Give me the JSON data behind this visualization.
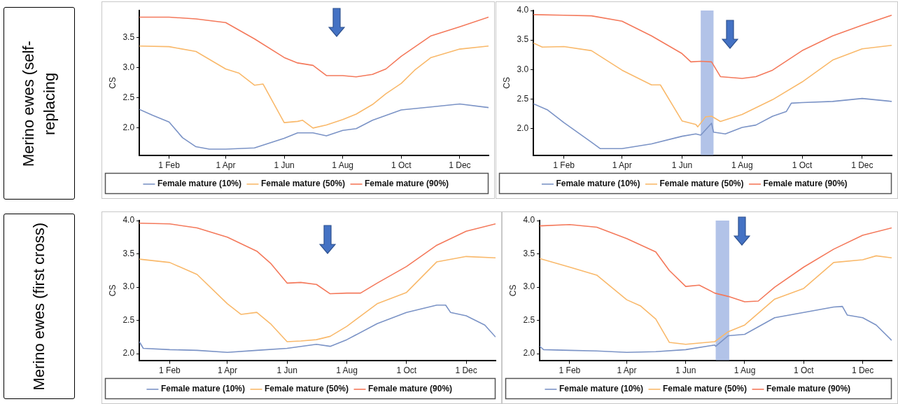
{
  "chart_data": [
    {
      "type": "line",
      "title": "Merino ewes (self-replacing",
      "ylabel": "CS",
      "legend": "bottom",
      "marker": "none",
      "grid": false,
      "xlim": [
        "--01-01",
        "--12-31"
      ],
      "xticks": [
        {
          "value": "--02-01",
          "label": "1 Feb"
        },
        {
          "value": "--04-01",
          "label": "1 Apr"
        },
        {
          "value": "--06-01",
          "label": "1 Jun"
        },
        {
          "value": "--08-01",
          "label": "1 Aug"
        },
        {
          "value": "--10-01",
          "label": "1 Oct"
        },
        {
          "value": "--12-01",
          "label": "1 Dec"
        }
      ],
      "ylim": [
        1.55,
        3.95
      ],
      "yticks": [
        {
          "value": 2,
          "label": "2.0"
        },
        {
          "value": 2.5,
          "label": "2.5"
        },
        {
          "value": 3,
          "label": "3.0"
        },
        {
          "value": 3.5,
          "label": "3.5"
        }
      ],
      "series": [
        {
          "name": "Female mature (10%)",
          "color": "#7b93c6",
          "x": [
            "--01-01",
            "--01-15",
            "--02-01",
            "--02-15",
            "--03-01",
            "--03-15",
            "--04-01",
            "--05-01",
            "--06-01",
            "--06-15",
            "--07-01",
            "--07-15",
            "--08-01",
            "--08-15",
            "--09-01",
            "--10-01",
            "--11-01",
            "--12-01",
            "--12-31"
          ],
          "values": [
            2.31,
            2.21,
            2.1,
            1.84,
            1.69,
            1.65,
            1.65,
            1.67,
            1.83,
            1.92,
            1.92,
            1.87,
            1.96,
            1.99,
            2.13,
            2.3,
            2.35,
            2.4,
            2.34
          ]
        },
        {
          "name": "Female mature (50%)",
          "color": "#f9b96b",
          "x": [
            "--01-01",
            "--02-01",
            "--03-01",
            "--04-01",
            "--04-15",
            "--05-01",
            "--05-10",
            "--06-01",
            "--06-15",
            "--06-20",
            "--07-01",
            "--07-15",
            "--08-01",
            "--08-15",
            "--09-01",
            "--09-15",
            "--10-01",
            "--10-15",
            "--11-01",
            "--12-01",
            "--12-31"
          ],
          "values": [
            3.36,
            3.35,
            3.27,
            2.98,
            2.91,
            2.71,
            2.73,
            2.09,
            2.11,
            2.13,
            2.0,
            2.05,
            2.14,
            2.23,
            2.39,
            2.57,
            2.74,
            2.96,
            3.17,
            3.31,
            3.36
          ]
        },
        {
          "name": "Female mature (90%)",
          "color": "#f4795b",
          "x": [
            "--01-01",
            "--02-01",
            "--03-01",
            "--04-01",
            "--05-01",
            "--06-01",
            "--06-15",
            "--07-01",
            "--07-15",
            "--08-01",
            "--08-15",
            "--09-01",
            "--09-15",
            "--10-01",
            "--11-01",
            "--12-01",
            "--12-31"
          ],
          "values": [
            3.84,
            3.84,
            3.81,
            3.75,
            3.48,
            3.17,
            3.08,
            3.04,
            2.87,
            2.87,
            2.85,
            2.89,
            2.98,
            3.19,
            3.53,
            3.68,
            3.84
          ]
        }
      ]
    },
    {
      "type": "line",
      "ylabel": "CS",
      "legend": "bottom",
      "marker": "none",
      "grid": false,
      "xlim": [
        "--01-01",
        "--12-31"
      ],
      "xticks": [
        {
          "value": "--02-01",
          "label": "1 Feb"
        },
        {
          "value": "--04-01",
          "label": "1 Apr"
        },
        {
          "value": "--06-01",
          "label": "1 Jun"
        },
        {
          "value": "--08-01",
          "label": "1 Aug"
        },
        {
          "value": "--10-01",
          "label": "1 Oct"
        },
        {
          "value": "--12-01",
          "label": "1 Dec"
        }
      ],
      "ylim": [
        1.55,
        4.0
      ],
      "yticks": [
        {
          "value": 2,
          "label": "2.0"
        },
        {
          "value": 2.5,
          "label": "2.5"
        },
        {
          "value": 3,
          "label": "3.0"
        },
        {
          "value": 3.5,
          "label": "3.5"
        },
        {
          "value": 4,
          "label": "4.0"
        }
      ],
      "bands": [
        {
          "axis": "x",
          "from": "--06-20",
          "to": "--07-03",
          "color": "#aabde6"
        }
      ],
      "series": [
        {
          "name": "Female mature (10%)",
          "color": "#7b93c6",
          "x": [
            "--01-01",
            "--01-15",
            "--02-01",
            "--03-01",
            "--03-10",
            "--04-01",
            "--05-01",
            "--06-01",
            "--06-15",
            "--06-20",
            "--07-01",
            "--07-03",
            "--07-15",
            "--08-01",
            "--08-15",
            "--09-01",
            "--09-15",
            "--09-20",
            "--10-01",
            "--11-01",
            "--12-01",
            "--12-31"
          ],
          "values": [
            2.42,
            2.32,
            2.1,
            1.77,
            1.66,
            1.66,
            1.74,
            1.87,
            1.91,
            1.89,
            2.09,
            1.94,
            1.91,
            2.02,
            2.06,
            2.21,
            2.29,
            2.43,
            2.44,
            2.46,
            2.51,
            2.46
          ]
        },
        {
          "name": "Female mature (50%)",
          "color": "#f9b96b",
          "x": [
            "--01-01",
            "--01-10",
            "--02-01",
            "--03-01",
            "--04-01",
            "--05-01",
            "--05-10",
            "--06-01",
            "--06-15",
            "--06-17",
            "--06-25",
            "--07-01",
            "--07-10",
            "--08-01",
            "--09-01",
            "--10-01",
            "--11-01",
            "--12-01",
            "--12-31"
          ],
          "values": [
            3.45,
            3.38,
            3.39,
            3.32,
            2.99,
            2.74,
            2.74,
            2.13,
            2.07,
            2.03,
            2.2,
            2.21,
            2.12,
            2.24,
            2.49,
            2.79,
            3.16,
            3.35,
            3.41
          ]
        },
        {
          "name": "Female mature (90%)",
          "color": "#f4795b",
          "x": [
            "--01-01",
            "--02-01",
            "--03-01",
            "--04-01",
            "--05-01",
            "--06-01",
            "--06-10",
            "--06-20",
            "--07-01",
            "--07-10",
            "--08-01",
            "--08-15",
            "--09-01",
            "--10-01",
            "--11-01",
            "--12-01",
            "--12-31"
          ],
          "values": [
            3.93,
            3.92,
            3.91,
            3.82,
            3.57,
            3.27,
            3.13,
            3.14,
            3.13,
            2.88,
            2.85,
            2.88,
            2.99,
            3.32,
            3.57,
            3.75,
            3.92
          ]
        }
      ]
    },
    {
      "type": "line",
      "title": "Merino ewes (first cross)",
      "ylabel": "CS",
      "legend": "bottom",
      "marker": "none",
      "grid": false,
      "xlim": [
        "--01-01",
        "--12-31"
      ],
      "xticks": [
        {
          "value": "--02-01",
          "label": "1 Feb"
        },
        {
          "value": "--04-01",
          "label": "1 Apr"
        },
        {
          "value": "--06-01",
          "label": "1 Jun"
        },
        {
          "value": "--08-01",
          "label": "1 Aug"
        },
        {
          "value": "--10-01",
          "label": "1 Oct"
        },
        {
          "value": "--12-01",
          "label": "1 Dec"
        }
      ],
      "ylim": [
        1.9,
        4.0
      ],
      "yticks": [
        {
          "value": 2,
          "label": "2.0"
        },
        {
          "value": 2.5,
          "label": "2.5"
        },
        {
          "value": 3,
          "label": "3.0"
        },
        {
          "value": 3.5,
          "label": "3.5"
        },
        {
          "value": 4,
          "label": "4.0"
        }
      ],
      "series": [
        {
          "name": "Female mature (10%)",
          "color": "#7b93c6",
          "x": [
            "--01-01",
            "--01-05",
            "--02-01",
            "--03-01",
            "--04-01",
            "--05-01",
            "--06-01",
            "--07-01",
            "--07-15",
            "--08-01",
            "--09-01",
            "--10-01",
            "--11-01",
            "--11-10",
            "--11-15",
            "--12-01",
            "--12-20",
            "--12-31"
          ],
          "values": [
            2.18,
            2.08,
            2.06,
            2.05,
            2.02,
            2.05,
            2.08,
            2.14,
            2.11,
            2.21,
            2.45,
            2.62,
            2.73,
            2.73,
            2.62,
            2.57,
            2.43,
            2.25
          ]
        },
        {
          "name": "Female mature (50%)",
          "color": "#f9b96b",
          "x": [
            "--01-01",
            "--02-01",
            "--03-01",
            "--04-01",
            "--04-15",
            "--05-01",
            "--05-15",
            "--06-01",
            "--06-15",
            "--07-01",
            "--07-15",
            "--08-01",
            "--09-01",
            "--10-01",
            "--11-01",
            "--12-01",
            "--12-31"
          ],
          "values": [
            3.42,
            3.37,
            3.19,
            2.75,
            2.59,
            2.62,
            2.45,
            2.18,
            2.19,
            2.21,
            2.26,
            2.41,
            2.75,
            2.92,
            3.38,
            3.46,
            3.44
          ]
        },
        {
          "name": "Female mature (90%)",
          "color": "#f4795b",
          "x": [
            "--01-01",
            "--02-01",
            "--03-01",
            "--04-01",
            "--05-01",
            "--05-15",
            "--06-01",
            "--06-15",
            "--07-01",
            "--07-15",
            "--08-01",
            "--08-15",
            "--09-01",
            "--10-01",
            "--11-01",
            "--12-01",
            "--12-31"
          ],
          "values": [
            3.96,
            3.95,
            3.89,
            3.75,
            3.54,
            3.36,
            3.06,
            3.07,
            3.04,
            2.9,
            2.91,
            2.91,
            3.06,
            3.31,
            3.63,
            3.84,
            3.95
          ]
        }
      ]
    },
    {
      "type": "line",
      "ylabel": "CS",
      "legend": "bottom",
      "marker": "none",
      "grid": false,
      "xlim": [
        "--01-01",
        "--12-31"
      ],
      "xticks": [
        {
          "value": "--02-01",
          "label": "1 Feb"
        },
        {
          "value": "--04-01",
          "label": "1 Apr"
        },
        {
          "value": "--06-01",
          "label": "1 Jun"
        },
        {
          "value": "--08-01",
          "label": "1 Aug"
        },
        {
          "value": "--10-01",
          "label": "1 Oct"
        },
        {
          "value": "--12-01",
          "label": "1 Dec"
        }
      ],
      "ylim": [
        1.9,
        4.0
      ],
      "yticks": [
        {
          "value": 2,
          "label": "2.0"
        },
        {
          "value": 2.5,
          "label": "2.5"
        },
        {
          "value": 3,
          "label": "3.0"
        },
        {
          "value": 3.5,
          "label": "3.5"
        },
        {
          "value": 4,
          "label": "4.0"
        }
      ],
      "bands": [
        {
          "axis": "x",
          "from": "--07-02",
          "to": "--07-16",
          "color": "#aabde6"
        }
      ],
      "series": [
        {
          "name": "Female mature (10%)",
          "color": "#7b93c6",
          "x": [
            "--01-01",
            "--01-05",
            "--02-01",
            "--03-01",
            "--04-01",
            "--05-01",
            "--06-01",
            "--07-01",
            "--07-02",
            "--07-15",
            "--08-01",
            "--09-01",
            "--10-01",
            "--11-01",
            "--11-10",
            "--11-15",
            "--12-01",
            "--12-15",
            "--12-31"
          ],
          "values": [
            2.11,
            2.06,
            2.05,
            2.04,
            2.02,
            2.03,
            2.06,
            2.13,
            2.11,
            2.27,
            2.29,
            2.54,
            2.62,
            2.7,
            2.71,
            2.58,
            2.54,
            2.43,
            2.2
          ]
        },
        {
          "name": "Female mature (50%)",
          "color": "#f9b96b",
          "x": [
            "--01-01",
            "--02-01",
            "--03-01",
            "--04-01",
            "--04-15",
            "--05-01",
            "--05-15",
            "--06-01",
            "--07-01",
            "--07-15",
            "--08-01",
            "--09-01",
            "--10-01",
            "--11-01",
            "--12-01",
            "--12-15",
            "--12-31"
          ],
          "values": [
            3.43,
            3.3,
            3.18,
            2.81,
            2.72,
            2.52,
            2.17,
            2.14,
            2.18,
            2.33,
            2.43,
            2.82,
            2.98,
            3.37,
            3.41,
            3.47,
            3.44
          ]
        },
        {
          "name": "Female mature (90%)",
          "color": "#f4795b",
          "x": [
            "--01-01",
            "--02-01",
            "--03-01",
            "--04-01",
            "--05-01",
            "--05-15",
            "--06-01",
            "--06-15",
            "--07-01",
            "--07-15",
            "--08-01",
            "--08-15",
            "--09-01",
            "--10-01",
            "--11-01",
            "--12-01",
            "--12-31"
          ],
          "values": [
            3.92,
            3.94,
            3.9,
            3.73,
            3.53,
            3.25,
            3.01,
            3.03,
            2.91,
            2.86,
            2.78,
            2.79,
            3.0,
            3.3,
            3.57,
            3.78,
            3.89
          ]
        }
      ]
    }
  ]
}
